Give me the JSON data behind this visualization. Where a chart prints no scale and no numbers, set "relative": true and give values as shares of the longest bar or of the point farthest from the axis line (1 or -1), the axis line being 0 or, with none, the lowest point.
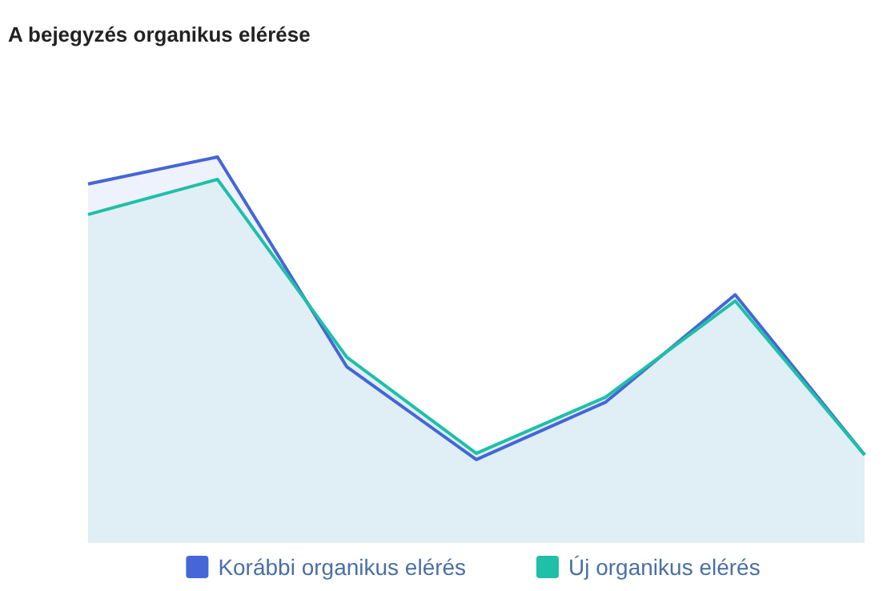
{
  "chart_data": {
    "type": "area",
    "title": "A bejegyzés organikus elérése",
    "relative": true,
    "categories": [
      null,
      null,
      null,
      null,
      null,
      null,
      null
    ],
    "series": [
      {
        "name": "Korábbi organikus elérés",
        "color": "#4466d6",
        "values": [
          0.93,
          1,
          0.456,
          0.216,
          0.365,
          0.643,
          0.228
        ]
      },
      {
        "name": "Új organikus elérés",
        "color": "#1fbfa8",
        "values": [
          0.851,
          0.942,
          0.481,
          0.232,
          0.378,
          0.627,
          0.228
        ]
      }
    ],
    "legend": "bottom"
  }
}
